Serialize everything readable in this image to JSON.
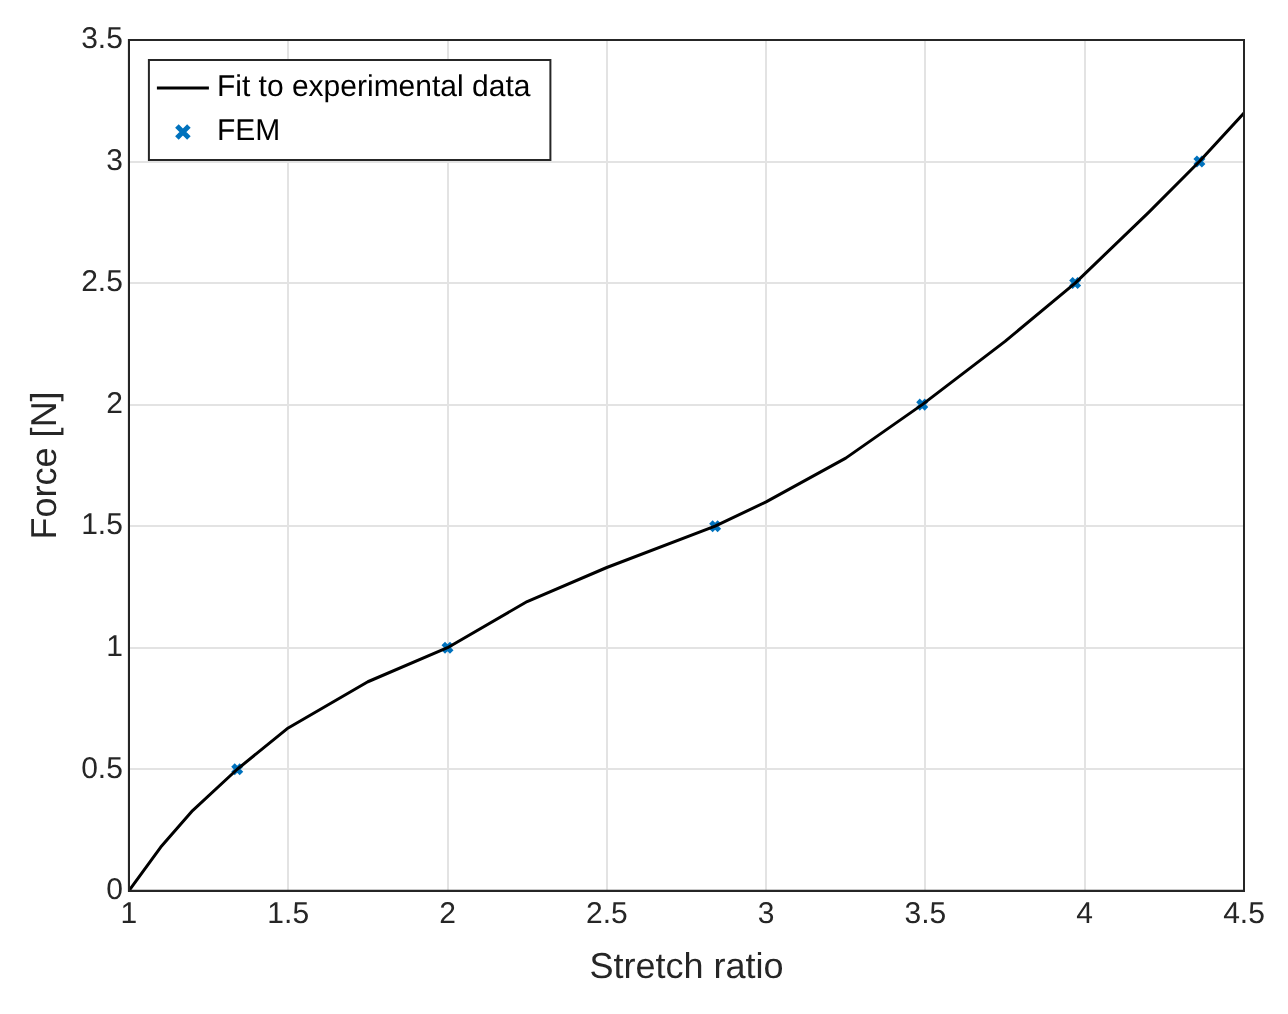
{
  "chart_data": {
    "type": "line",
    "xlabel": "Stretch ratio",
    "ylabel": "Force [N]",
    "xlim": [
      1,
      4.5
    ],
    "xticks": [
      1,
      1.5,
      2,
      2.5,
      3,
      3.5,
      4,
      4.5
    ],
    "ylim": [
      0,
      3.5
    ],
    "yticks": [
      0,
      0.5,
      1,
      1.5,
      2,
      2.5,
      3,
      3.5
    ],
    "grid": true,
    "legend": "top left",
    "series": [
      {
        "name": "Fit to experimental data",
        "type": "line",
        "color": "#000000",
        "marker": "none",
        "line_style": "solid",
        "x": [
          1,
          1.1,
          1.2,
          1.34,
          1.5,
          1.75,
          2,
          2.25,
          2.5,
          2.84,
          3,
          3.25,
          3.49,
          3.75,
          3.97,
          4.2,
          4.36,
          4.5
        ],
        "values": [
          0,
          0.18,
          0.33,
          0.5,
          0.67,
          0.86,
          1,
          1.19,
          1.33,
          1.5,
          1.6,
          1.78,
          2,
          2.26,
          2.5,
          2.79,
          3,
          3.2
        ]
      },
      {
        "name": "FEM",
        "type": "scatter",
        "color": "#0072bd",
        "marker": "cross",
        "x": [
          1.34,
          2,
          2.84,
          3.49,
          3.97,
          4.36
        ],
        "values": [
          0.5,
          1,
          1.5,
          2,
          2.5,
          3
        ]
      }
    ]
  }
}
